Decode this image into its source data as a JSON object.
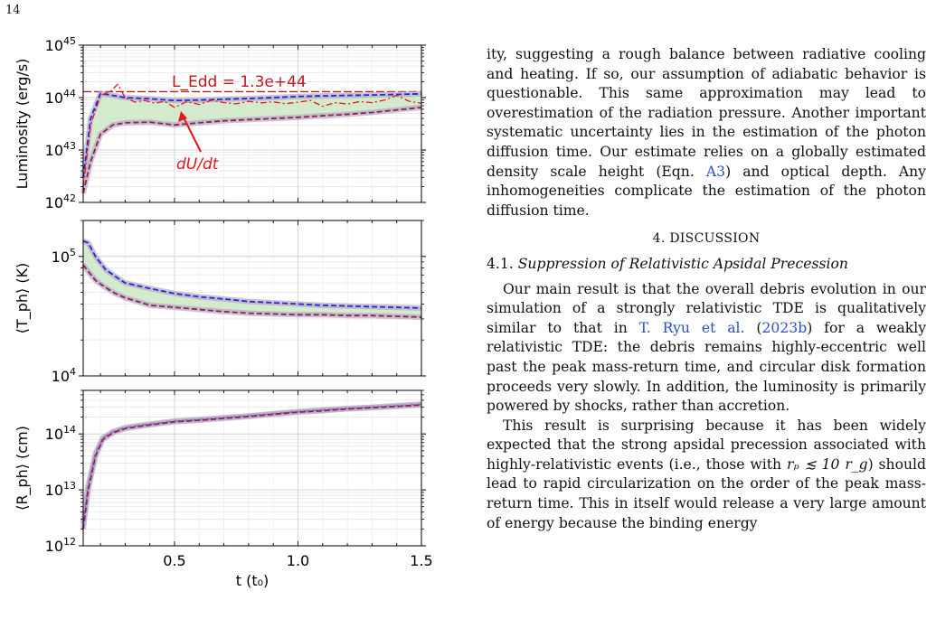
{
  "page_number": "14",
  "figure": {
    "xlabel": "t (t₀)",
    "x_ticks": [
      "0.5",
      "1.0",
      "1.5"
    ],
    "panels": [
      {
        "ylabel": "Luminosity (erg/s)",
        "y_ticks": [
          "42",
          "43",
          "44",
          "45"
        ],
        "annotation_edd": "L_Edd = 1.3e+44",
        "annotation_dudt": "dU/dt"
      },
      {
        "ylabel": "⟨T_ph⟩ (K)",
        "y_ticks": [
          "4",
          "5"
        ]
      },
      {
        "ylabel": "⟨R_ph⟩ (cm)",
        "y_ticks": [
          "12",
          "13",
          "14"
        ]
      }
    ]
  },
  "chart_data": [
    {
      "type": "line",
      "log_y": true,
      "xlim": [
        0.13,
        1.5
      ],
      "ylim": [
        1e+42,
        1e+45
      ],
      "grid": true,
      "hline": {
        "y": 1.3e+44,
        "label": "L_Edd = 1.3e+44",
        "color": "#b22222"
      },
      "series": [
        {
          "name": "",
          "color": "#1f2bd6",
          "x": [
            0.13,
            0.16,
            0.2,
            0.25,
            0.3,
            0.4,
            0.5,
            0.6,
            0.7,
            0.8,
            0.9,
            1.0,
            1.1,
            1.2,
            1.3,
            1.4,
            1.5
          ],
          "y": [
            3e+42,
            4e+43,
            1.2e+44,
            1.1e+44,
            1e+44,
            9.5e+43,
            8.8e+43,
            9e+43,
            9.3e+43,
            9.6e+43,
            1e+44,
            1.05e+44,
            1.08e+44,
            1.1e+44,
            1.12e+44,
            1.15e+44,
            1.18e+44
          ]
        },
        {
          "name": "",
          "color": "#8b2252",
          "x": [
            0.13,
            0.16,
            0.2,
            0.25,
            0.3,
            0.4,
            0.5,
            0.6,
            0.7,
            0.8,
            0.9,
            1.0,
            1.1,
            1.2,
            1.3,
            1.4,
            1.5
          ],
          "y": [
            1.5e+42,
            6e+42,
            2e+43,
            3e+43,
            3.3e+43,
            3.4e+43,
            3e+43,
            3.3e+43,
            3.6e+43,
            3.8e+43,
            4e+43,
            4.2e+43,
            4.5e+43,
            4.8e+43,
            5.2e+43,
            5.8e+43,
            6.5e+43
          ]
        },
        {
          "name": "dU/dt",
          "color": "#e8151b",
          "x": [
            0.13,
            0.16,
            0.2,
            0.24,
            0.27,
            0.3,
            0.34,
            0.38,
            0.42,
            0.46,
            0.5,
            0.55,
            0.6,
            0.65,
            0.7,
            0.75,
            0.8,
            0.85,
            0.9,
            0.95,
            1.0,
            1.05,
            1.1,
            1.15,
            1.2,
            1.25,
            1.3,
            1.35,
            1.4,
            1.45,
            1.5
          ],
          "y": [
            2e+42,
            3e+43,
            1.1e+44,
            1.3e+44,
            1.8e+44,
            1e+44,
            8.2e+43,
            8.8e+43,
            7.8e+43,
            8.5e+43,
            6.5e+43,
            8.4e+43,
            7.4e+43,
            8.9e+43,
            8e+43,
            7.6e+43,
            8.5e+43,
            7.9e+43,
            8.3e+43,
            7.6e+43,
            8.2e+43,
            8.8e+43,
            6.8e+43,
            8e+43,
            7.5e+43,
            8.4e+43,
            8e+43,
            9e+43,
            1.1e+44,
            8.5e+43,
            7.8e+43
          ]
        }
      ]
    },
    {
      "type": "line",
      "log_y": true,
      "xlim": [
        0.13,
        1.5
      ],
      "ylim": [
        10000.0,
        200000.0
      ],
      "grid": true,
      "series": [
        {
          "name": "",
          "color": "#1f2bd6",
          "x": [
            0.13,
            0.15,
            0.18,
            0.22,
            0.26,
            0.3,
            0.35,
            0.4,
            0.5,
            0.6,
            0.7,
            0.8,
            0.9,
            1.0,
            1.1,
            1.2,
            1.3,
            1.4,
            1.5
          ],
          "y": [
            135000.0,
            130000.0,
            100000.0,
            78000.0,
            68000.0,
            60000.0,
            57000.0,
            54000.0,
            49000.0,
            46000.0,
            44000.0,
            42000.0,
            41000.0,
            40000.0,
            39000.0,
            38500.0,
            38000.0,
            37500.0,
            37000.0
          ]
        },
        {
          "name": "",
          "color": "#8b2252",
          "x": [
            0.13,
            0.15,
            0.18,
            0.22,
            0.26,
            0.3,
            0.35,
            0.4,
            0.5,
            0.6,
            0.7,
            0.8,
            0.9,
            1.0,
            1.1,
            1.2,
            1.3,
            1.4,
            1.5
          ],
          "y": [
            85000.0,
            75000.0,
            63000.0,
            55000.0,
            49000.0,
            45000.0,
            42000.0,
            39000.0,
            37500.0,
            36000.0,
            34500.0,
            33500.0,
            33000.0,
            32500.0,
            32500.0,
            32000.0,
            32000.0,
            31500.0,
            31000.0
          ]
        }
      ]
    },
    {
      "type": "line",
      "log_y": true,
      "xlim": [
        0.13,
        1.5
      ],
      "ylim": [
        1000000000000.0,
        600000000000000.0
      ],
      "grid": true,
      "series": [
        {
          "name": "",
          "color": "#1f2bd6",
          "x": [
            0.13,
            0.15,
            0.18,
            0.21,
            0.25,
            0.3,
            0.35,
            0.4,
            0.5,
            0.6,
            0.7,
            0.8,
            0.9,
            1.0,
            1.1,
            1.2,
            1.3,
            1.4,
            1.5
          ],
          "y": [
            2500000000000.0,
            12000000000000.0,
            45000000000000.0,
            85000000000000.0,
            110000000000000.0,
            130000000000000.0,
            140000000000000.0,
            150000000000000.0,
            170000000000000.0,
            180000000000000.0,
            195000000000000.0,
            210000000000000.0,
            230000000000000.0,
            250000000000000.0,
            270000000000000.0,
            285000000000000.0,
            300000000000000.0,
            320000000000000.0,
            340000000000000.0
          ]
        },
        {
          "name": "",
          "color": "#8b2252",
          "x": [
            0.13,
            0.15,
            0.18,
            0.21,
            0.25,
            0.3,
            0.35,
            0.4,
            0.5,
            0.6,
            0.7,
            0.8,
            0.9,
            1.0,
            1.1,
            1.2,
            1.3,
            1.4,
            1.5
          ],
          "y": [
            2000000000000.0,
            10000000000000.0,
            40000000000000.0,
            80000000000000.0,
            105000000000000.0,
            125000000000000.0,
            135000000000000.0,
            145000000000000.0,
            165000000000000.0,
            175000000000000.0,
            190000000000000.0,
            205000000000000.0,
            225000000000000.0,
            245000000000000.0,
            260000000000000.0,
            280000000000000.0,
            295000000000000.0,
            310000000000000.0,
            330000000000000.0
          ]
        }
      ]
    }
  ],
  "text": {
    "p1": "ity, suggesting a rough balance between radiative cooling and heating. If so, our assumption of adiabatic behavior is questionable. This same approximation may lead to overestimation of the radiation pressure. Another important systematic uncertainty lies in the estimation of the photon diffusion time. Our estimate relies on a globally estimated density scale height (Eqn. ",
    "p1_link": "A3",
    "p1_end": ") and optical depth. Any inhomogeneities complicate the estimation of the photon diffusion time.",
    "section": "4. DISCUSSION",
    "subsection_num": "4.1.",
    "subsection_title": "Suppression of Relativistic Apsidal Precession",
    "p2_a": "Our main result is that the overall debris evolution in our simulation of a strongly relativistic TDE is qualitatively similar to that in ",
    "p2_link": "T. Ryu et al.",
    "p2_link_open": " (",
    "p2_link_year": "2023b",
    "p2_b": ") for a weakly relativistic TDE: the debris remains highly-eccentric well past the peak mass-return time, and circular disk formation proceeds very slowly. In addition, the luminosity is primarily powered by shocks, rather than accretion.",
    "p3_a": "This result is surprising because it has been widely expected that the strong apsidal precession associated with highly-relativistic events (i.e., those with ",
    "p3_math": "rₚ ≲ 10 r_g",
    "p3_b": ") should lead to rapid circularization on the order of the peak mass-return time. This in itself would release a very large amount of energy because the binding energy"
  }
}
